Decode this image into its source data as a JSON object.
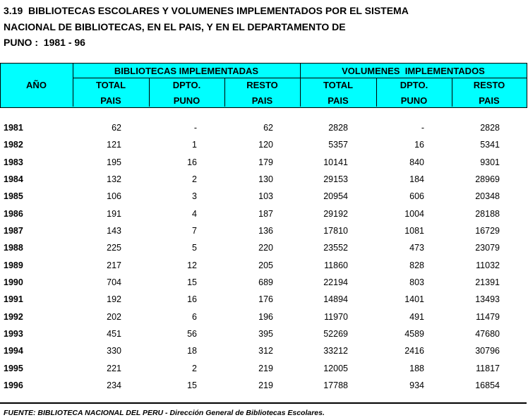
{
  "title": [
    "3.19  BIBLIOTECAS ESCOLARES Y VOLUMENES IMPLEMENTADOS POR EL SISTEMA",
    "NACIONAL DE BIBLIOTECAS, EN EL PAIS, Y EN EL DEPARTAMENTO DE",
    "PUNO :  1981 - 96"
  ],
  "table": {
    "header": {
      "year": "AÑO",
      "groups": [
        "BIBLIOTECAS IMPLEMENTADAS",
        "VOLUMENES  IMPLEMENTADOS"
      ],
      "columns": [
        [
          "TOTAL",
          "PAIS"
        ],
        [
          "DPTO.",
          "PUNO"
        ],
        [
          "RESTO",
          "PAIS"
        ],
        [
          "TOTAL",
          "PAIS"
        ],
        [
          "DPTO.",
          "PUNO"
        ],
        [
          "RESTO",
          "PAIS"
        ]
      ]
    },
    "rows": [
      [
        "1981",
        "62",
        "-",
        "62",
        "2828",
        "-",
        "2828"
      ],
      [
        "1982",
        "121",
        "1",
        "120",
        "5357",
        "16",
        "5341"
      ],
      [
        "1983",
        "195",
        "16",
        "179",
        "10141",
        "840",
        "9301"
      ],
      [
        "1984",
        "132",
        "2",
        "130",
        "29153",
        "184",
        "28969"
      ],
      [
        "1985",
        "106",
        "3",
        "103",
        "20954",
        "606",
        "20348"
      ],
      [
        "1986",
        "191",
        "4",
        "187",
        "29192",
        "1004",
        "28188"
      ],
      [
        "1987",
        "143",
        "7",
        "136",
        "17810",
        "1081",
        "16729"
      ],
      [
        "1988",
        "225",
        "5",
        "220",
        "23552",
        "473",
        "23079"
      ],
      [
        "1989",
        "217",
        "12",
        "205",
        "11860",
        "828",
        "11032"
      ],
      [
        "1990",
        "704",
        "15",
        "689",
        "22194",
        "803",
        "21391"
      ],
      [
        "1991",
        "192",
        "16",
        "176",
        "14894",
        "1401",
        "13493"
      ],
      [
        "1992",
        "202",
        "6",
        "196",
        "11970",
        "491",
        "11479"
      ],
      [
        "1993",
        "451",
        "56",
        "395",
        "52269",
        "4589",
        "47680"
      ],
      [
        "1994",
        "330",
        "18",
        "312",
        "33212",
        "2416",
        "30796"
      ],
      [
        "1995",
        "221",
        "2",
        "219",
        "12005",
        "188",
        "11817"
      ],
      [
        "1996",
        "234",
        "15",
        "219",
        "17788",
        "934",
        "16854"
      ]
    ]
  },
  "footer": "FUENTE: BIBLIOTECA NACIONAL DEL PERU - Dirección General de Bibliotecas Escolares."
}
